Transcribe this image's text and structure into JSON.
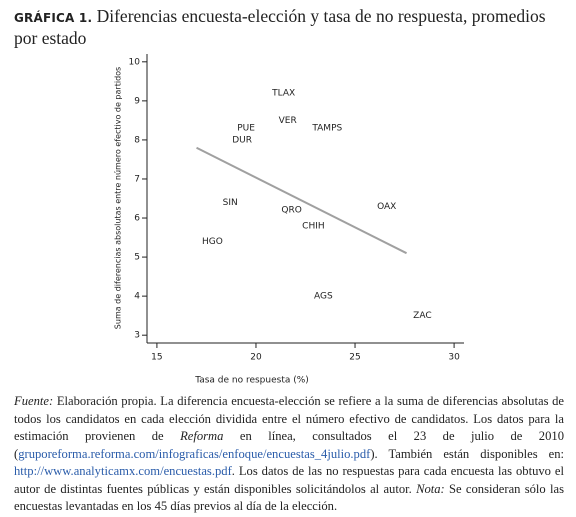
{
  "chart_data": {
    "type": "scatter",
    "figure_label": "GRÁFICA 1.",
    "title": "Diferencias encuesta-elección y tasa de no respuesta, promedios por estado",
    "xlabel": "Tasa de no respuesta (%)",
    "ylabel": "Suma de diferencias absolutas entre número efectivo de partidos",
    "labels": [
      "TLAX",
      "VER",
      "TAMPS",
      "PUE",
      "DUR",
      "SIN",
      "QRO",
      "CHIH",
      "OAX",
      "HGO",
      "AGS",
      "ZAC"
    ],
    "x": [
      21.4,
      21.6,
      23.6,
      19.5,
      19.3,
      18.7,
      21.8,
      22.9,
      26.6,
      17.8,
      23.4,
      28.4
    ],
    "y": [
      9.2,
      8.5,
      8.3,
      8.3,
      8.0,
      6.4,
      6.2,
      5.8,
      6.3,
      5.4,
      4.0,
      3.5
    ],
    "trend": {
      "x": [
        17.0,
        27.6
      ],
      "y": [
        7.8,
        5.1
      ],
      "color": "#a0a0a0"
    },
    "xlim": [
      14.5,
      30.5
    ],
    "ylim": [
      2.8,
      10.2
    ],
    "xticks": [
      15,
      20,
      25,
      30
    ],
    "yticks": [
      3,
      4,
      5,
      6,
      7,
      8,
      9,
      10
    ],
    "grid": false
  },
  "note": [
    {
      "text": "Fuente:",
      "style": "italic"
    },
    {
      "text": " Elaboración propia. La diferencia encuesta-elección se refiere a la suma de diferencias absolutas de todos los candidatos en cada elección dividida entre el número efectivo de candidatos. Los datos para la estimación provienen de "
    },
    {
      "text": "Reforma",
      "style": "italic"
    },
    {
      "text": " en línea, consultados el 23 de julio de 2010 ("
    },
    {
      "text": "gruporeforma.reforma.com/infograficas/enfoque/encuestas_4julio.pdf",
      "style": "link"
    },
    {
      "text": "). También están disponibles en: "
    },
    {
      "text": "http://www.analyticamx.com/encuestas.pdf",
      "style": "link"
    },
    {
      "text": ". Los datos de las no respuestas para cada encuesta las obtuvo el autor de distintas fuentes públicas y están disponibles solicitándolos al autor. "
    },
    {
      "text": "Nota:",
      "style": "italic"
    },
    {
      "text": " Se consideran sólo las encuestas levantadas en los 45 días previos al día de la elección."
    }
  ]
}
